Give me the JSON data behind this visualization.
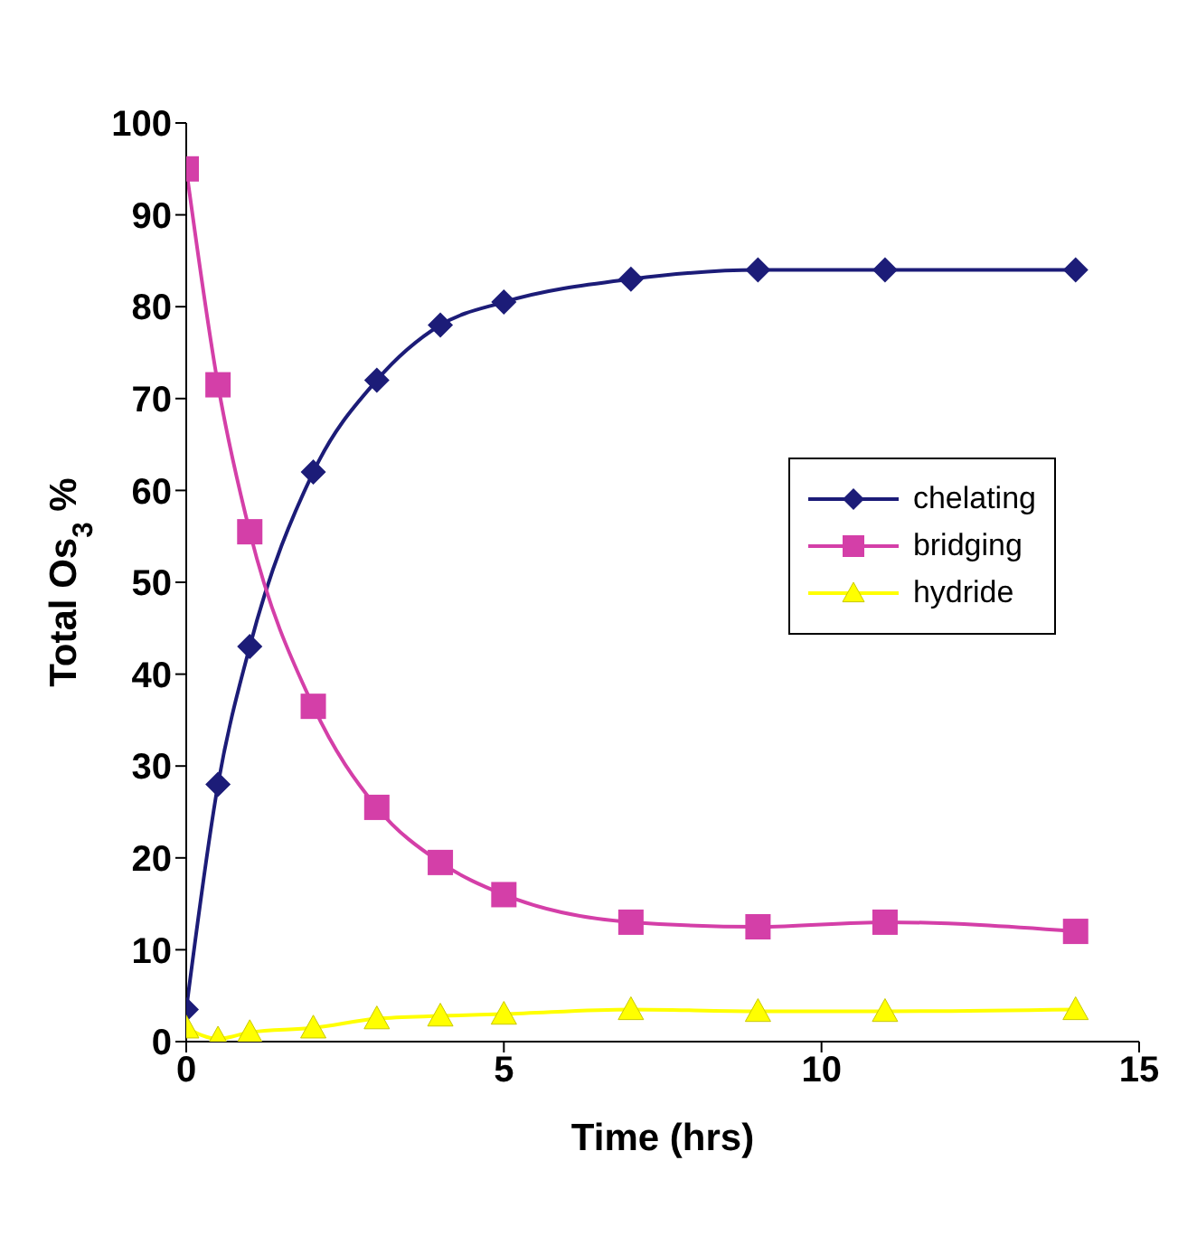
{
  "chart_data": {
    "type": "line",
    "xlabel": "Time (hrs)",
    "ylabel": "Total Os$_{3}$ %",
    "x": [
      0,
      0.5,
      1,
      2,
      3,
      4,
      5,
      7,
      9,
      11,
      14
    ],
    "xlim": [
      0,
      15
    ],
    "xticks": [
      0,
      5,
      10,
      15
    ],
    "ylim": [
      0,
      100
    ],
    "yticks": [
      0,
      10,
      20,
      30,
      40,
      50,
      60,
      70,
      80,
      90,
      100
    ],
    "grid": false,
    "legend": "right",
    "series": [
      {
        "name": "chelating",
        "color": "#1c1c78",
        "marker": "diamond",
        "values": [
          3.5,
          28,
          43,
          62,
          72,
          78,
          80.5,
          83,
          84,
          84,
          84
        ]
      },
      {
        "name": "bridging",
        "color": "#d43fa8",
        "marker": "square",
        "values": [
          95,
          71.5,
          55.5,
          36.5,
          25.5,
          19.5,
          16,
          13,
          12.5,
          13,
          12
        ]
      },
      {
        "name": "hydride",
        "color": "#ffff00",
        "marker": "triangle",
        "values": [
          1.5,
          0.3,
          1,
          1.5,
          2.5,
          2.8,
          3,
          3.5,
          3.3,
          3.3,
          3.5
        ]
      }
    ]
  }
}
